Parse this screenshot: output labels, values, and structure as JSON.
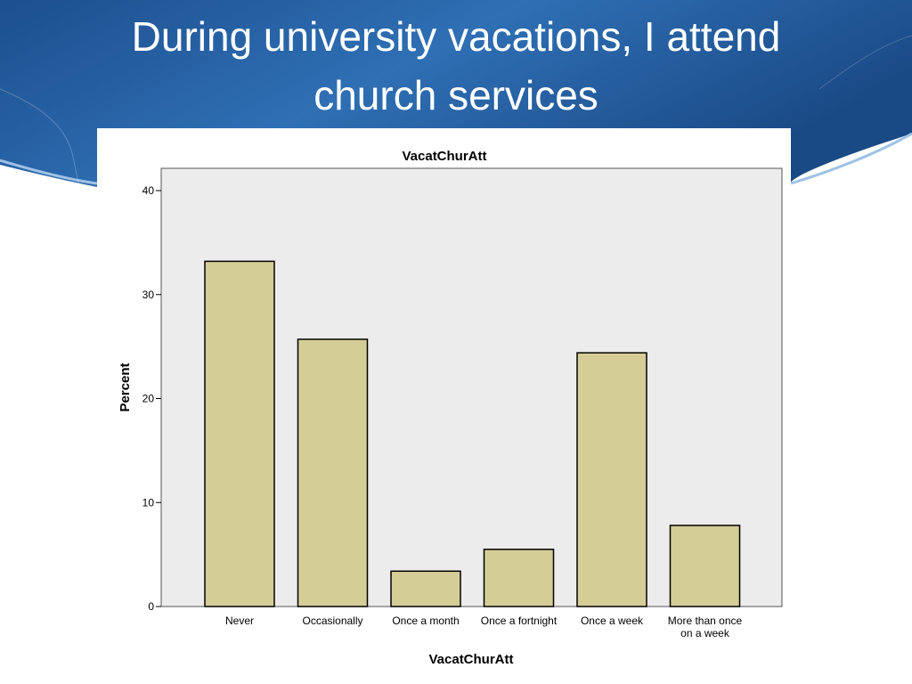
{
  "slide": {
    "title_line1": "During university vacations, I attend",
    "title_line2": "church services",
    "colors": {
      "background_blue": "#1c4f8e",
      "title_text": "#ffffff"
    }
  },
  "chart_data": {
    "type": "bar",
    "title": "VacatChurAtt",
    "xlabel": "VacatChurAtt",
    "ylabel": "Percent",
    "ylim": [
      0,
      42
    ],
    "yticks": [
      0,
      10,
      20,
      30,
      40
    ],
    "categories": [
      [
        "Never"
      ],
      [
        "Occasionally"
      ],
      [
        "Once a month"
      ],
      [
        "Once a fortnight"
      ],
      [
        "Once a week"
      ],
      [
        "More than once",
        "on a week"
      ]
    ],
    "values": [
      33.2,
      25.7,
      3.4,
      5.5,
      24.4,
      7.8
    ],
    "grid": false,
    "legend": "none",
    "colors": {
      "bar_fill": "#d4ce96",
      "bar_stroke": "#000000",
      "plot_bg": "#ececec"
    }
  }
}
